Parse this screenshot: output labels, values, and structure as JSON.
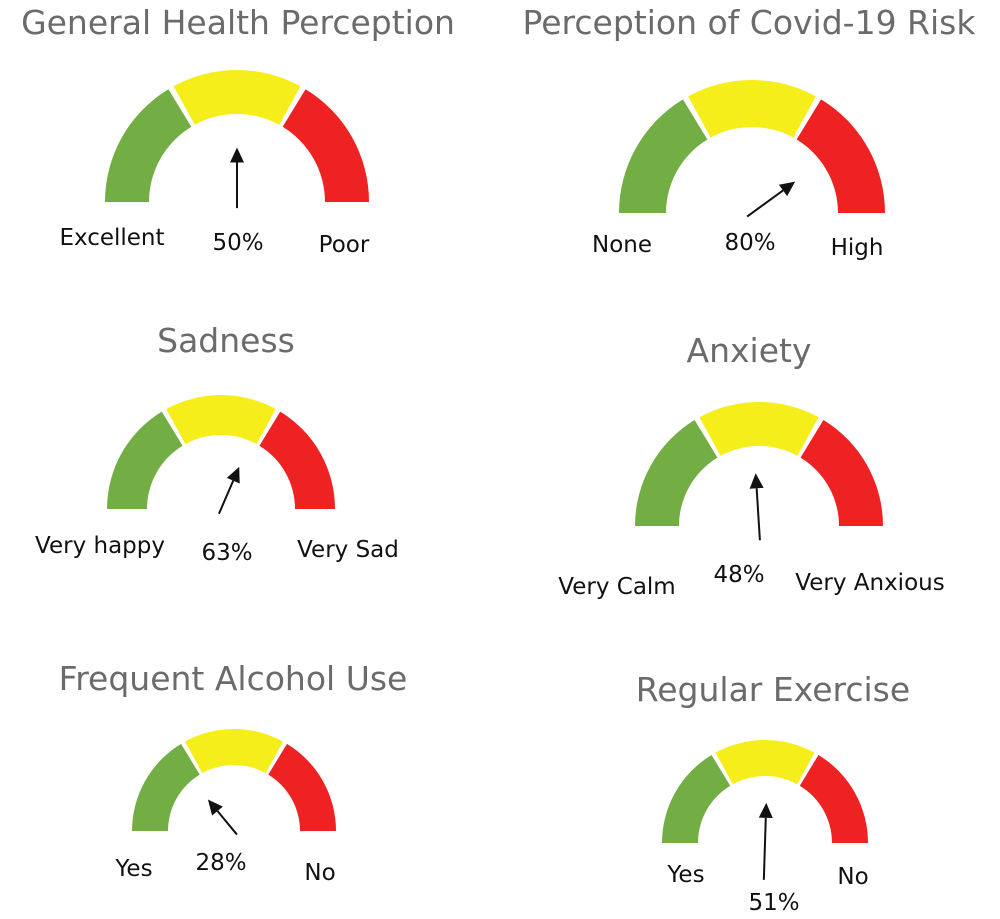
{
  "colors": {
    "good": "#72ae43",
    "mid": "#f6ee1b",
    "bad": "#ee2222",
    "title": "#6b6b6b",
    "text": "#111111",
    "arrow": "#111111"
  },
  "chart_data": [
    {
      "type": "gauge",
      "title": "General Health Perception",
      "value": 50,
      "value_label": "50%",
      "min_label": "Excellent",
      "max_label": "Poor",
      "segments": [
        "green",
        "yellow",
        "red"
      ]
    },
    {
      "type": "gauge",
      "title": "Perception of Covid-19 Risk",
      "value": 80,
      "value_label": "80%",
      "min_label": "None",
      "max_label": "High",
      "segments": [
        "green",
        "yellow",
        "red"
      ]
    },
    {
      "type": "gauge",
      "title": "Sadness",
      "value": 63,
      "value_label": "63%",
      "min_label": "Very happy",
      "max_label": "Very Sad",
      "segments": [
        "green",
        "yellow",
        "red"
      ]
    },
    {
      "type": "gauge",
      "title": "Anxiety",
      "value": 48,
      "value_label": "48%",
      "min_label": "Very Calm",
      "max_label": "Very Anxious",
      "segments": [
        "green",
        "yellow",
        "red"
      ]
    },
    {
      "type": "gauge",
      "title": "Frequent Alcohol Use",
      "value": 28,
      "value_label": "28%",
      "min_label": "Yes",
      "max_label": "No",
      "segments": [
        "green",
        "yellow",
        "red"
      ]
    },
    {
      "type": "gauge",
      "title": "Regular Exercise",
      "value": 51,
      "value_label": "51%",
      "min_label": "Yes",
      "max_label": "No",
      "segments": [
        "green",
        "yellow",
        "red"
      ]
    }
  ]
}
